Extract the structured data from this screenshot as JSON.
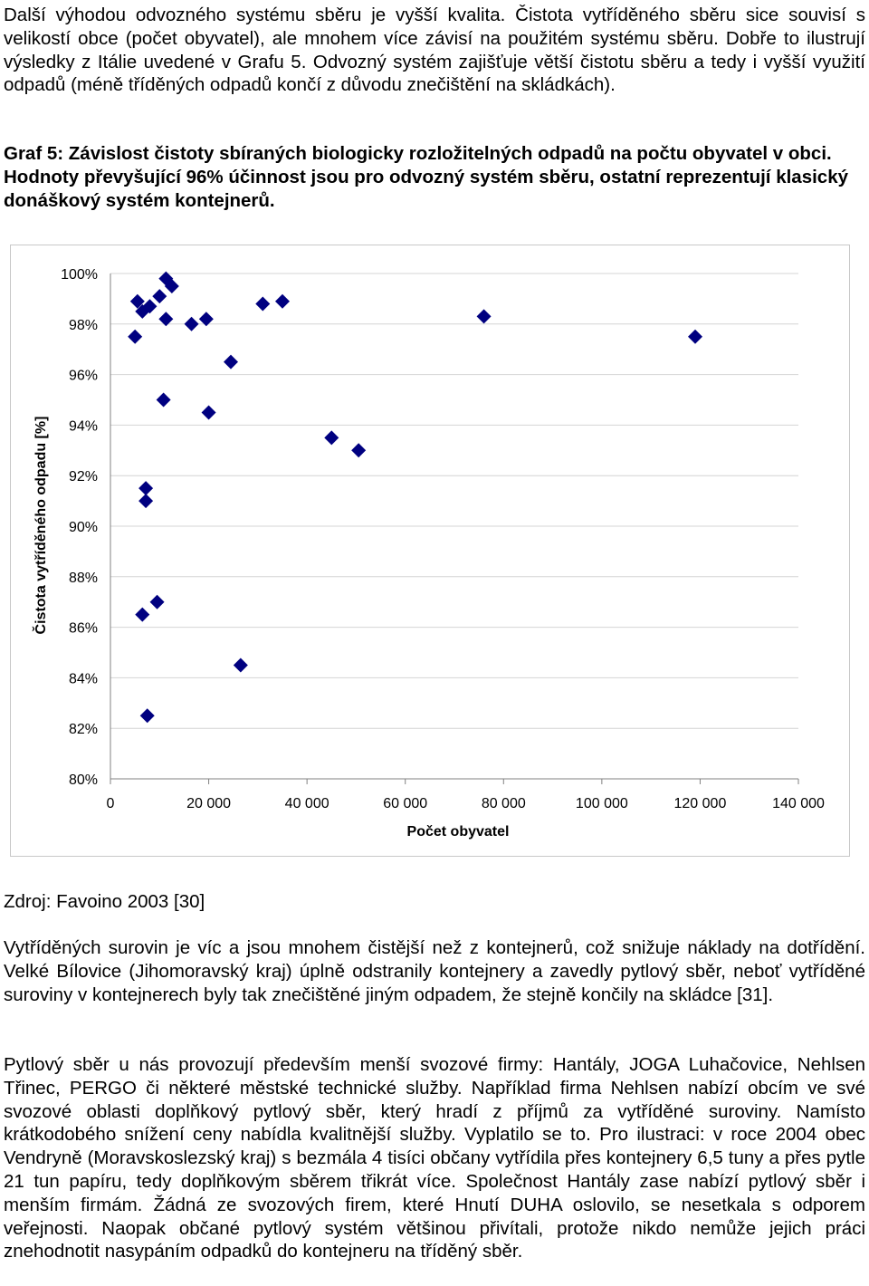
{
  "paragraphs_top": {
    "p1": "Další výhodou odvozného systému sběru je vyšší kvalita. Čistota vytříděného sběru sice souvisí s velikostí obce (počet obyvatel), ale mnohem více závisí na použitém systému sběru. Dobře to ilustrují výsledky z Itálie uvedené v Grafu 5. Odvozný systém zajišťuje větší čistotu sběru a tedy i vyšší využití odpadů (méně tříděných odpadů končí z důvodu znečištění na skládkách)."
  },
  "figure": {
    "caption": "Graf 5: Závislost čistoty sbíraných biologicky rozložitelných odpadů na počtu obyvatel v obci. Hodnoty převyšující 96% účinnost jsou pro odvozný systém sběru, ostatní reprezentují klasický donáškový systém kontejnerů.",
    "source": "Zdroj: Favoino 2003 [30]"
  },
  "chart_data": {
    "type": "scatter",
    "xlabel": "Počet obyvatel",
    "ylabel": "Čistota vytříděného odpadu [%]",
    "xlim": [
      0,
      140000
    ],
    "ylim": [
      80,
      100
    ],
    "x_ticks": [
      0,
      20000,
      40000,
      60000,
      80000,
      100000,
      120000,
      140000
    ],
    "x_tick_labels": [
      "0",
      "20 000",
      "40 000",
      "60 000",
      "80 000",
      "100 000",
      "120 000",
      "140 000"
    ],
    "y_ticks": [
      80,
      82,
      84,
      86,
      88,
      90,
      92,
      94,
      96,
      98,
      100
    ],
    "y_tick_labels": [
      "80%",
      "82%",
      "84%",
      "86%",
      "88%",
      "90%",
      "92%",
      "94%",
      "96%",
      "98%",
      "100%"
    ],
    "grid": "horizontal",
    "marker": "diamond",
    "marker_color": "#000080",
    "points": [
      {
        "x": 5000,
        "y": 97.5
      },
      {
        "x": 5500,
        "y": 98.9
      },
      {
        "x": 6500,
        "y": 98.5
      },
      {
        "x": 6500,
        "y": 86.5
      },
      {
        "x": 7200,
        "y": 91.5
      },
      {
        "x": 7200,
        "y": 91.0
      },
      {
        "x": 7500,
        "y": 82.5
      },
      {
        "x": 8000,
        "y": 98.7
      },
      {
        "x": 9500,
        "y": 87.0
      },
      {
        "x": 10000,
        "y": 99.1
      },
      {
        "x": 10800,
        "y": 95.0
      },
      {
        "x": 11300,
        "y": 98.2
      },
      {
        "x": 11300,
        "y": 99.8
      },
      {
        "x": 12500,
        "y": 99.5
      },
      {
        "x": 16500,
        "y": 98.0
      },
      {
        "x": 19500,
        "y": 98.2
      },
      {
        "x": 20000,
        "y": 94.5
      },
      {
        "x": 24500,
        "y": 96.5
      },
      {
        "x": 26500,
        "y": 84.5
      },
      {
        "x": 31000,
        "y": 98.8
      },
      {
        "x": 35000,
        "y": 98.9
      },
      {
        "x": 45000,
        "y": 93.5
      },
      {
        "x": 50500,
        "y": 93.0
      },
      {
        "x": 76000,
        "y": 98.3
      },
      {
        "x": 119000,
        "y": 97.5
      }
    ]
  },
  "paragraphs_bottom": {
    "p2": "Vytříděných surovin je víc a jsou mnohem čistější než z kontejnerů, což snižuje náklady na dotřídění. Velké Bílovice (Jihomoravský kraj) úplně odstranily kontejnery a zavedly pytlový sběr, neboť vytříděné suroviny v kontejnerech byly tak znečištěné jiným odpadem, že stejně končily na skládce [31].",
    "p3": "Pytlový sběr u nás provozují především menší svozové firmy: Hantály, JOGA Luhačovice, Nehlsen Třinec, PERGO či některé městské technické služby. Například firma Nehlsen nabízí obcím ve své svozové oblasti doplňkový pytlový sběr, který hradí z příjmů za vytříděné suroviny. Namísto krátkodobého snížení ceny nabídla kvalitnější služby. Vyplatilo se to. Pro ilustraci: v roce 2004 obec Vendryně (Moravskoslezský kraj) s bezmála 4 tisíci občany vytřídila přes kontejnery 6,5 tuny a přes pytle 21 tun papíru, tedy doplňkovým sběrem třikrát více. Společnost Hantály zase nabízí pytlový sběr i menším firmám. Žádná ze svozových firem, které Hnutí DUHA oslovilo, se nesetkala s odporem veřejnosti. Naopak občané pytlový systém většinou přivítali, protože nikdo nemůže jejich práci znehodnotit nasypáním odpadků do kontejneru na tříděný sběr."
  }
}
